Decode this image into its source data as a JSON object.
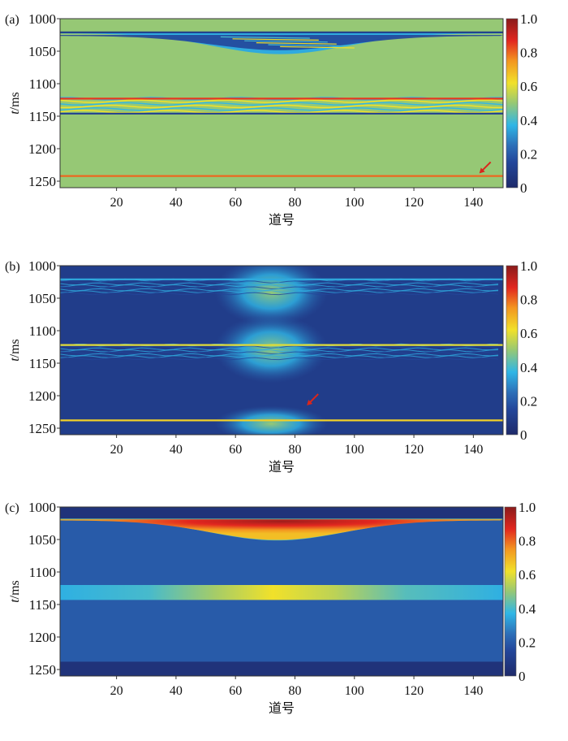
{
  "chart_data": [
    {
      "type": "heatmap",
      "panel_label": "(a)",
      "xlabel": "道号",
      "ylabel_italic": "t",
      "ylabel_unit": "/ms",
      "xlim": [
        1,
        150
      ],
      "ylim": [
        1000,
        1260
      ],
      "xticks": [
        "20",
        "40",
        "60",
        "80",
        "100",
        "120",
        "140"
      ],
      "yticks": [
        "1000",
        "1050",
        "1100",
        "1150",
        "1200",
        "1250"
      ],
      "colorbar": {
        "range": [
          0,
          1
        ],
        "ticks": [
          "0",
          "0.2",
          "0.4",
          "0.6",
          "0.8",
          "1.0"
        ]
      },
      "background_value": 0.5,
      "features": [
        {
          "kind": "line",
          "t": 1021,
          "value": 0.1
        },
        {
          "kind": "wedge",
          "t_top": 1021,
          "t_bottom_max": 1053,
          "center_trace": 75,
          "value": 0.15
        },
        {
          "kind": "band",
          "t_range": [
            1120,
            1148
          ],
          "value": 0.55
        },
        {
          "kind": "line",
          "t": 1123,
          "value": 0.85
        },
        {
          "kind": "line",
          "t": 1146,
          "value": 0.12
        },
        {
          "kind": "line",
          "t": 1242,
          "value": 0.8
        }
      ],
      "arrow": {
        "trace": 142,
        "t": 1238
      }
    },
    {
      "type": "heatmap",
      "panel_label": "(b)",
      "xlabel": "道号",
      "ylabel_italic": "t",
      "ylabel_unit": "/ms",
      "xlim": [
        1,
        150
      ],
      "ylim": [
        1000,
        1260
      ],
      "xticks": [
        "20",
        "40",
        "60",
        "80",
        "100",
        "120",
        "140"
      ],
      "yticks": [
        "1000",
        "1050",
        "1100",
        "1150",
        "1200",
        "1250"
      ],
      "colorbar": {
        "range": [
          0,
          1
        ],
        "ticks": [
          "0",
          "0.2",
          "0.4",
          "0.6",
          "0.8",
          "1.0"
        ]
      },
      "background_value": 0.1,
      "features": [
        {
          "kind": "glow",
          "center_trace": 72,
          "t": 1040,
          "value": 0.5
        },
        {
          "kind": "glow",
          "center_trace": 72,
          "t": 1128,
          "value": 0.5
        },
        {
          "kind": "glow",
          "center_trace": 72,
          "t": 1243,
          "value": 0.4
        },
        {
          "kind": "line",
          "t": 1021,
          "value": 0.35
        },
        {
          "kind": "line",
          "t": 1122,
          "value": 0.6
        },
        {
          "kind": "line",
          "t": 1238,
          "value": 0.65
        }
      ],
      "arrow": {
        "trace": 84,
        "t": 1215
      }
    },
    {
      "type": "heatmap",
      "panel_label": "(c)",
      "xlabel": "道号",
      "ylabel_italic": "t",
      "ylabel_unit": "/ms",
      "xlim": [
        1,
        150
      ],
      "ylim": [
        1000,
        1260
      ],
      "xticks": [
        "20",
        "40",
        "60",
        "80",
        "100",
        "120",
        "140"
      ],
      "yticks": [
        "1000",
        "1050",
        "1100",
        "1150",
        "1200",
        "1250"
      ],
      "colorbar": {
        "range": [
          0,
          1
        ],
        "ticks": [
          "0",
          "0.2",
          "0.4",
          "0.6",
          "0.8",
          "1.0"
        ]
      },
      "background_value": 0.2,
      "features": [
        {
          "kind": "block",
          "t_range": [
            1000,
            1018
          ],
          "value": 0.05
        },
        {
          "kind": "wedge",
          "t_top": 1018,
          "t_bottom_max": 1050,
          "center_trace": 74,
          "value": 0.95
        },
        {
          "kind": "band",
          "t_range": [
            1120,
            1143
          ],
          "value_edge": 0.35,
          "value_center": 0.6
        },
        {
          "kind": "block",
          "t_range": [
            1238,
            1260
          ],
          "value": 0.05
        }
      ]
    }
  ]
}
